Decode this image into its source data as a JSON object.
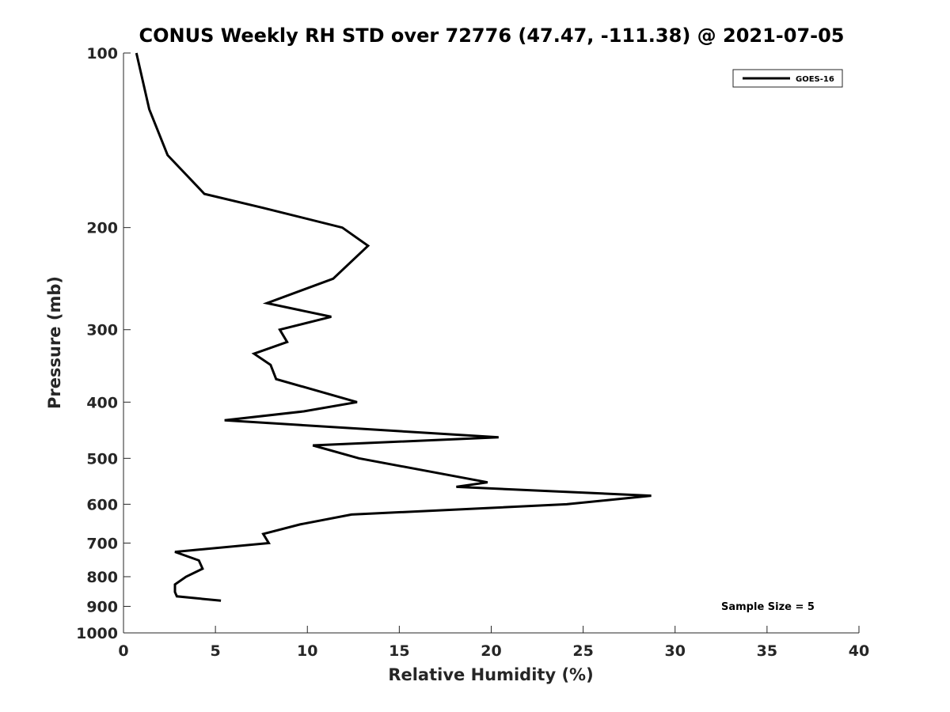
{
  "chart_data": {
    "type": "line",
    "title": "CONUS Weekly RH STD over 72776 (47.47, -111.38) @ 2021-07-05",
    "xlabel": "Relative Humidity (%)",
    "ylabel": "Pressure (mb)",
    "xlim": [
      0,
      40
    ],
    "ylim": [
      100,
      1000
    ],
    "y_scale": "log",
    "y_reversed": true,
    "x_ticks": [
      0,
      5,
      10,
      15,
      20,
      25,
      30,
      35,
      40
    ],
    "x_tick_labels": [
      "0",
      "5",
      "10",
      "15",
      "20",
      "25",
      "30",
      "35",
      "40"
    ],
    "y_ticks": [
      100,
      200,
      300,
      400,
      500,
      600,
      700,
      800,
      900,
      1000
    ],
    "y_tick_labels": [
      "100",
      "200",
      "300",
      "400",
      "500",
      "600",
      "700",
      "800",
      "900",
      "1000"
    ],
    "grid": false,
    "legend": {
      "position": "top-right",
      "entries": [
        "GOES-16"
      ]
    },
    "annotations": [
      {
        "text": "Sample Size = 5",
        "position": "bottom-right"
      }
    ],
    "series": [
      {
        "name": "GOES-16",
        "color": "#000000",
        "points": [
          {
            "x": 0.7,
            "y": 100
          },
          {
            "x": 1.4,
            "y": 125
          },
          {
            "x": 2.4,
            "y": 150
          },
          {
            "x": 4.4,
            "y": 175
          },
          {
            "x": 7.6,
            "y": 185
          },
          {
            "x": 11.9,
            "y": 200
          },
          {
            "x": 13.3,
            "y": 215
          },
          {
            "x": 11.4,
            "y": 245
          },
          {
            "x": 7.8,
            "y": 270
          },
          {
            "x": 11.3,
            "y": 285
          },
          {
            "x": 8.5,
            "y": 300
          },
          {
            "x": 8.9,
            "y": 315
          },
          {
            "x": 7.1,
            "y": 330
          },
          {
            "x": 8.0,
            "y": 345
          },
          {
            "x": 8.3,
            "y": 365
          },
          {
            "x": 12.7,
            "y": 400
          },
          {
            "x": 9.8,
            "y": 415
          },
          {
            "x": 5.5,
            "y": 430
          },
          {
            "x": 20.4,
            "y": 460
          },
          {
            "x": 10.3,
            "y": 475
          },
          {
            "x": 12.8,
            "y": 500
          },
          {
            "x": 19.8,
            "y": 550
          },
          {
            "x": 18.1,
            "y": 560
          },
          {
            "x": 28.7,
            "y": 580
          },
          {
            "x": 24.1,
            "y": 600
          },
          {
            "x": 12.4,
            "y": 625
          },
          {
            "x": 9.6,
            "y": 650
          },
          {
            "x": 7.6,
            "y": 675
          },
          {
            "x": 7.9,
            "y": 700
          },
          {
            "x": 2.8,
            "y": 725
          },
          {
            "x": 4.1,
            "y": 750
          },
          {
            "x": 4.3,
            "y": 775
          },
          {
            "x": 3.4,
            "y": 800
          },
          {
            "x": 2.8,
            "y": 825
          },
          {
            "x": 2.8,
            "y": 850
          },
          {
            "x": 2.9,
            "y": 865
          },
          {
            "x": 5.3,
            "y": 880
          }
        ]
      }
    ]
  }
}
